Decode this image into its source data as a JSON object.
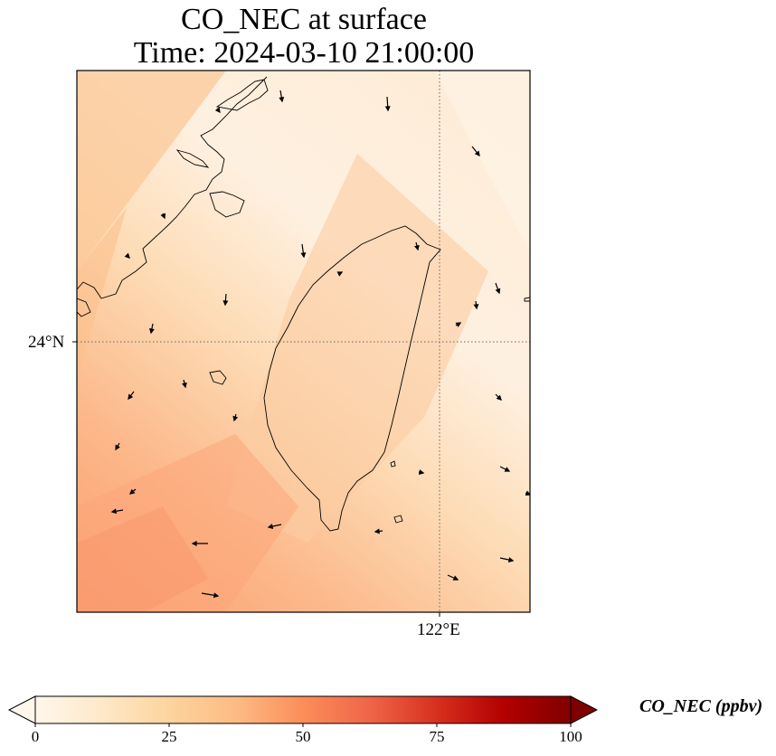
{
  "title": {
    "line1": "CO_NEC at surface",
    "line2": "Time: 2024-03-10 21:00:00"
  },
  "map": {
    "lat_gridline_label": "24°N",
    "lon_gridline_label": "122°E",
    "field_description_levels": {
      "northwest_coast": 30,
      "open_sea_band": 12,
      "taiwan_island": 20,
      "east_of_taiwan": 18,
      "southwest_sea": 38
    }
  },
  "colorbar": {
    "label": "CO_NEC (ppbv)",
    "ticks": [
      "0",
      "25",
      "50",
      "75",
      "100"
    ],
    "colormap": "OrRd",
    "stops": [
      "#fff7ec",
      "#fee8c8",
      "#fdd49e",
      "#fdbb84",
      "#fc8d59",
      "#ef6548",
      "#d7301f",
      "#b30000",
      "#7f0000"
    ]
  }
}
